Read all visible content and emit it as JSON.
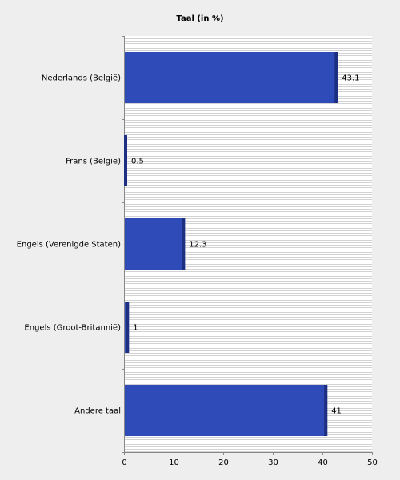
{
  "chart_data": {
    "type": "bar",
    "orientation": "horizontal",
    "title": "Taal (in %)",
    "xlabel": "",
    "ylabel": "",
    "categories": [
      "Nederlands (België)",
      "Frans (België)",
      "Engels (Verenigde Staten)",
      "Engels (Groot-Britannië)",
      "Andere taal"
    ],
    "values": [
      43.1,
      0.5,
      12.3,
      1,
      41
    ],
    "value_labels": [
      "43.1",
      "0.5",
      "12.3",
      "1",
      "41"
    ],
    "xlim": [
      0,
      50
    ],
    "x_ticks": [
      0,
      10,
      20,
      30,
      40,
      50
    ],
    "grid": "horizontal lines",
    "legend": "none",
    "colors": {
      "bar_fill": "#2e4bb8",
      "bar_edge": "#1c2f80",
      "background": "#eeeeee",
      "plot_background": "#ffffff",
      "grid": "#d2d2d2"
    }
  }
}
